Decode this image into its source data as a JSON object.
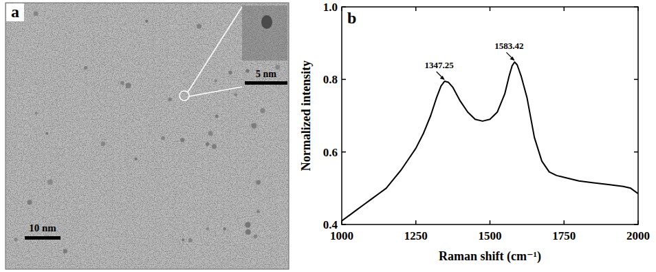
{
  "image_panel": {
    "panel_label": "a",
    "scale_bar_label": "10 nm",
    "inset_scale_bar_label": "5 nm"
  },
  "chart_data": {
    "type": "line",
    "panel_label": "b",
    "x_label": "Raman shift (cm⁻¹)",
    "y_label": "Normalized intensity",
    "color": "#000000",
    "x": [
      1000,
      1025,
      1050,
      1075,
      1100,
      1125,
      1150,
      1175,
      1200,
      1225,
      1250,
      1275,
      1300,
      1320,
      1335,
      1347.25,
      1360,
      1375,
      1400,
      1425,
      1450,
      1475,
      1500,
      1525,
      1550,
      1565,
      1575,
      1583.42,
      1592,
      1605,
      1625,
      1650,
      1675,
      1700,
      1725,
      1750,
      1800,
      1850,
      1900,
      1950,
      1975,
      2000
    ],
    "values": [
      0.41,
      0.425,
      0.44,
      0.455,
      0.47,
      0.485,
      0.5,
      0.525,
      0.55,
      0.58,
      0.61,
      0.65,
      0.7,
      0.75,
      0.782,
      0.795,
      0.792,
      0.778,
      0.74,
      0.71,
      0.69,
      0.685,
      0.69,
      0.71,
      0.76,
      0.81,
      0.838,
      0.848,
      0.84,
      0.81,
      0.75,
      0.64,
      0.575,
      0.545,
      0.535,
      0.53,
      0.52,
      0.515,
      0.51,
      0.505,
      0.5,
      0.485
    ],
    "xlim": [
      1000,
      2000
    ],
    "xticks": [
      1000,
      1250,
      1500,
      1750,
      2000
    ],
    "ylim": [
      0.4,
      1.0
    ],
    "yticks": [
      0.4,
      0.6,
      0.8,
      {
        "value": 1.0,
        "label": "1.0"
      }
    ],
    "annotations": [
      {
        "text": "1347.25",
        "x": 1347.25,
        "y": 0.795
      },
      {
        "text": "1583.42",
        "x": 1583.42,
        "y": 0.848
      }
    ]
  }
}
